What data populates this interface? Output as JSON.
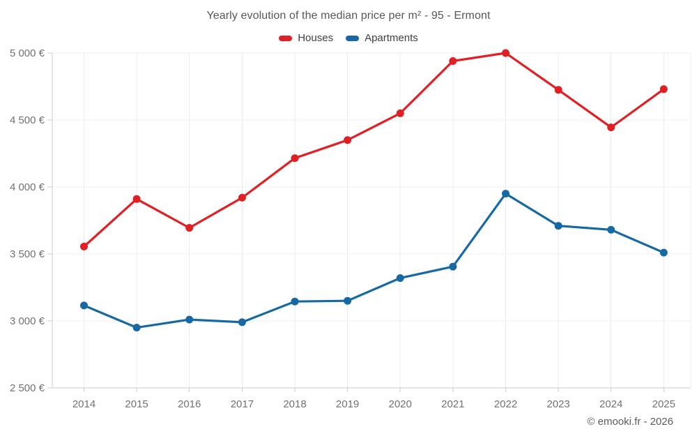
{
  "chart_data": {
    "type": "line",
    "title": "Yearly evolution of the median price per m² - 95 - Ermont",
    "xlabel": "",
    "ylabel": "",
    "legend_position": "top",
    "grid": true,
    "categories": [
      "2014",
      "2015",
      "2016",
      "2017",
      "2018",
      "2019",
      "2020",
      "2021",
      "2022",
      "2023",
      "2024",
      "2025"
    ],
    "series": [
      {
        "name": "Houses",
        "color": "#df2025",
        "values": [
          3555,
          3910,
          3695,
          3920,
          4215,
          4350,
          4550,
          4940,
          5000,
          4725,
          4445,
          4730
        ]
      },
      {
        "name": "Apartments",
        "color": "#1769a3",
        "values": [
          3115,
          2950,
          3010,
          2990,
          3145,
          3150,
          3320,
          3405,
          3950,
          3710,
          3680,
          3510
        ]
      }
    ],
    "ylim": [
      2500,
      5000
    ],
    "yticks": [
      2500,
      3000,
      3500,
      4000,
      4500,
      5000
    ],
    "ytick_labels": [
      "2 500 €",
      "3 000 €",
      "3 500 €",
      "4 000 €",
      "4 500 €",
      "5 000 €"
    ],
    "currency_suffix": "€",
    "grid_color": "#ececec",
    "axis_color": "#cccccc"
  },
  "footer": {
    "copyright": "© emooki.fr - 2026"
  }
}
